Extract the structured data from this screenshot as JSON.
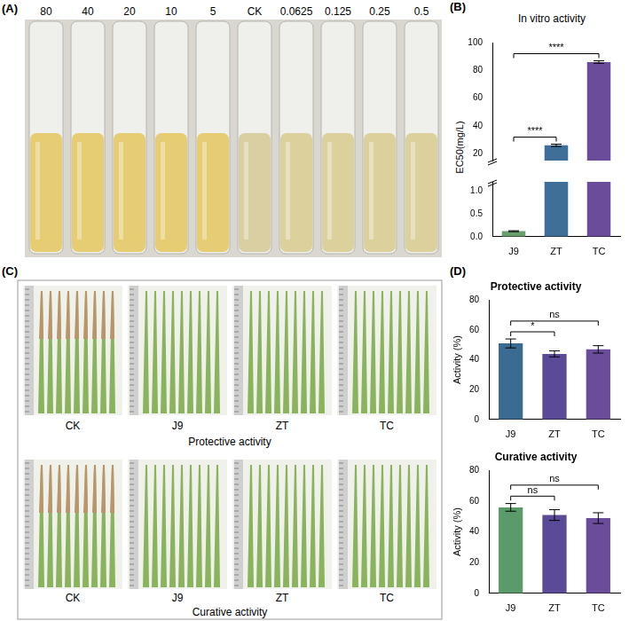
{
  "figure": {
    "A": {
      "panel": "(A)",
      "tube_labels": [
        "80",
        "40",
        "20",
        "10",
        "5",
        "CK",
        "0.0625",
        "0.125",
        "0.25",
        "0.5"
      ]
    },
    "C": {
      "panel": "(C)",
      "rows": [
        {
          "title": "Protective activity",
          "labels": [
            "CK",
            "J9",
            "ZT",
            "TC"
          ]
        },
        {
          "title": "Curative activity",
          "labels": [
            "CK",
            "J9",
            "ZT",
            "TC"
          ]
        }
      ]
    }
  },
  "chart_data": [
    {
      "panel": "(B)",
      "type": "bar",
      "title": "In vitro activity",
      "y_label": "EC50(mg/L)",
      "categories": [
        "J9",
        "ZT",
        "TC"
      ],
      "values": [
        0.12,
        26,
        86
      ],
      "errors": [
        0.01,
        0.8,
        0.9
      ],
      "colors": [
        "#6a9e6c",
        "#3f6f98",
        "#6b4c9a"
      ],
      "ylim": [
        0,
        100
      ],
      "y_break": [
        1.2,
        15
      ],
      "yticks": [
        {
          "value": 0,
          "label": "0.0"
        },
        {
          "value": 0.5,
          "label": "0.5"
        },
        {
          "value": 1,
          "label": "1.0"
        },
        20,
        40,
        60,
        80,
        100
      ],
      "annotations": [
        {
          "from": "J9",
          "to": "ZT",
          "text": "****"
        },
        {
          "from": "J9",
          "to": "TC",
          "text": "****"
        }
      ]
    },
    {
      "panel": "(D)",
      "type": "bar",
      "title": "Protective activity",
      "y_label": "Activity (%)",
      "categories": [
        "J9",
        "ZT",
        "TC"
      ],
      "values": [
        51,
        44,
        47
      ],
      "errors": [
        3,
        2,
        2.5
      ],
      "colors": [
        "#3b6a92",
        "#5a4a98",
        "#6b4c9a"
      ],
      "ylim": [
        0,
        80
      ],
      "yticks": [
        0,
        20,
        40,
        60,
        80
      ],
      "annotations": [
        {
          "from": "J9",
          "to": "ZT",
          "text": "*"
        },
        {
          "from": "J9",
          "to": "TC",
          "text": "ns"
        }
      ]
    },
    {
      "type": "bar",
      "title": "Curative activity",
      "y_label": "Activity (%)",
      "categories": [
        "J9",
        "ZT",
        "TC"
      ],
      "values": [
        56,
        51,
        49
      ],
      "errors": [
        2.5,
        3.5,
        3.5
      ],
      "colors": [
        "#5b9a6a",
        "#5a4a98",
        "#6b4c9a"
      ],
      "ylim": [
        0,
        80
      ],
      "yticks": [
        0,
        20,
        40,
        60,
        80
      ],
      "annotations": [
        {
          "from": "J9",
          "to": "ZT",
          "text": "ns"
        },
        {
          "from": "J9",
          "to": "TC",
          "text": "ns"
        }
      ]
    }
  ]
}
